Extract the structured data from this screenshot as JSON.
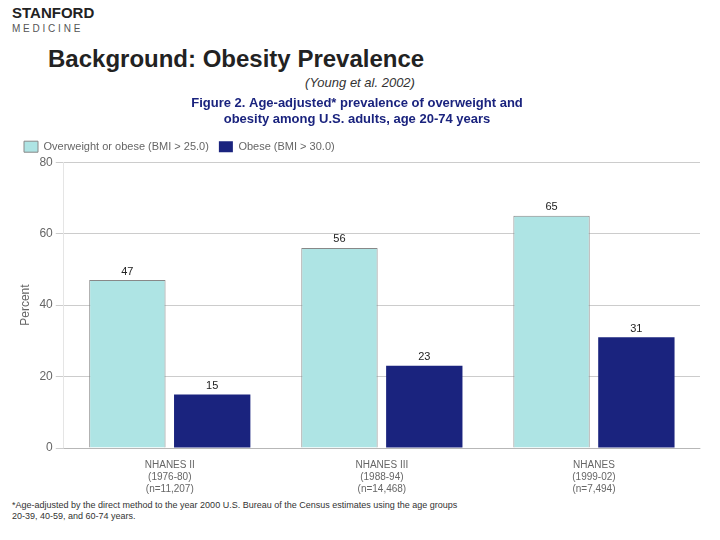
{
  "chart_data": {
    "type": "bar",
    "title": "Background: Obesity Prevalence",
    "subtitle": "(Young et al. 2002)",
    "annotations": [
      "STANFORD",
      "M E D I C I N E",
      "Figure 2. Age-adjusted* prevalence of overweight and\nobesity among U.S. adults, age 20-74 years",
      "*Age-adjusted by the direct method to the year 2000 U.S. Bureau of the Census estimates using the age groups\n20-39, 40-59, and 60-74 years."
    ],
    "ylabel": "Percent",
    "categories": [
      "NHANES II\n(1976-80)\n(n=11,207)",
      "NHANES III\n(1988-94)\n(n=14,468)",
      "NHANES\n(1999-02)\n(n=7,494)"
    ],
    "series": [
      {
        "name": "Overweight or obese (BMI > 25.0)",
        "color": "#aee4e4",
        "values": [
          47,
          56,
          65
        ]
      },
      {
        "name": "Obese (BMI > 30.0)",
        "color": "#1a237e",
        "values": [
          15,
          23,
          31
        ]
      }
    ],
    "ylim": [
      0,
      80
    ],
    "yticks": [
      0,
      20,
      40,
      60,
      80
    ],
    "grid": true,
    "legend": "upper left",
    "data_labels": true
  }
}
